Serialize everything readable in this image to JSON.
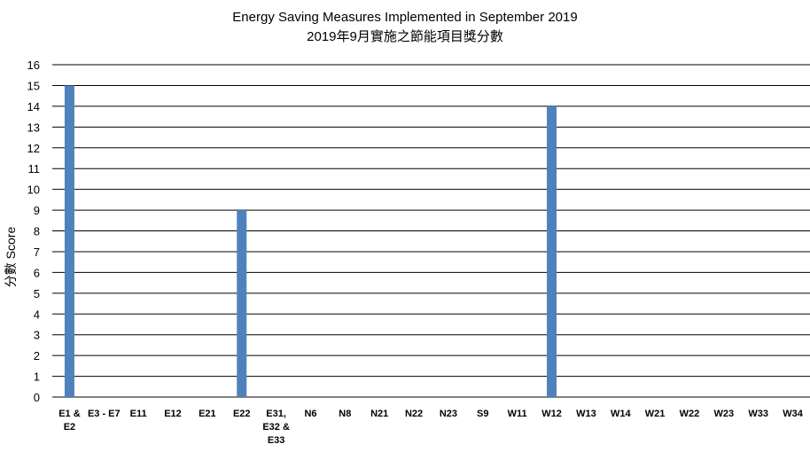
{
  "chart_data": {
    "type": "bar",
    "title": "Energy Saving Measures Implemented in September 2019",
    "subtitle": "2019年9月實施之節能項目獎分數",
    "xlabel": "",
    "ylabel": "分數 Score",
    "ylim": [
      0,
      16
    ],
    "yticks": [
      0,
      1,
      2,
      3,
      4,
      5,
      6,
      7,
      8,
      9,
      10,
      11,
      12,
      13,
      14,
      15,
      16
    ],
    "grid": true,
    "legend": "none",
    "bar_color": "#4F81BD",
    "categories": [
      [
        "E1 &",
        "E2"
      ],
      [
        "E3 - E7"
      ],
      [
        "E11"
      ],
      [
        "E12"
      ],
      [
        "E21"
      ],
      [
        "E22"
      ],
      [
        "E31,",
        "E32 &",
        "E33"
      ],
      [
        "N6"
      ],
      [
        "N8"
      ],
      [
        "N21"
      ],
      [
        "N22"
      ],
      [
        "N23"
      ],
      [
        "S9"
      ],
      [
        "W11"
      ],
      [
        "W12"
      ],
      [
        "W13"
      ],
      [
        "W14"
      ],
      [
        "W21"
      ],
      [
        "W22"
      ],
      [
        "W23"
      ],
      [
        "W33"
      ],
      [
        "W34"
      ]
    ],
    "values": [
      15,
      0,
      0,
      0,
      0,
      9,
      0,
      0,
      0,
      0,
      0,
      0,
      0,
      0,
      14,
      0,
      0,
      0,
      0,
      0,
      0,
      0
    ]
  }
}
